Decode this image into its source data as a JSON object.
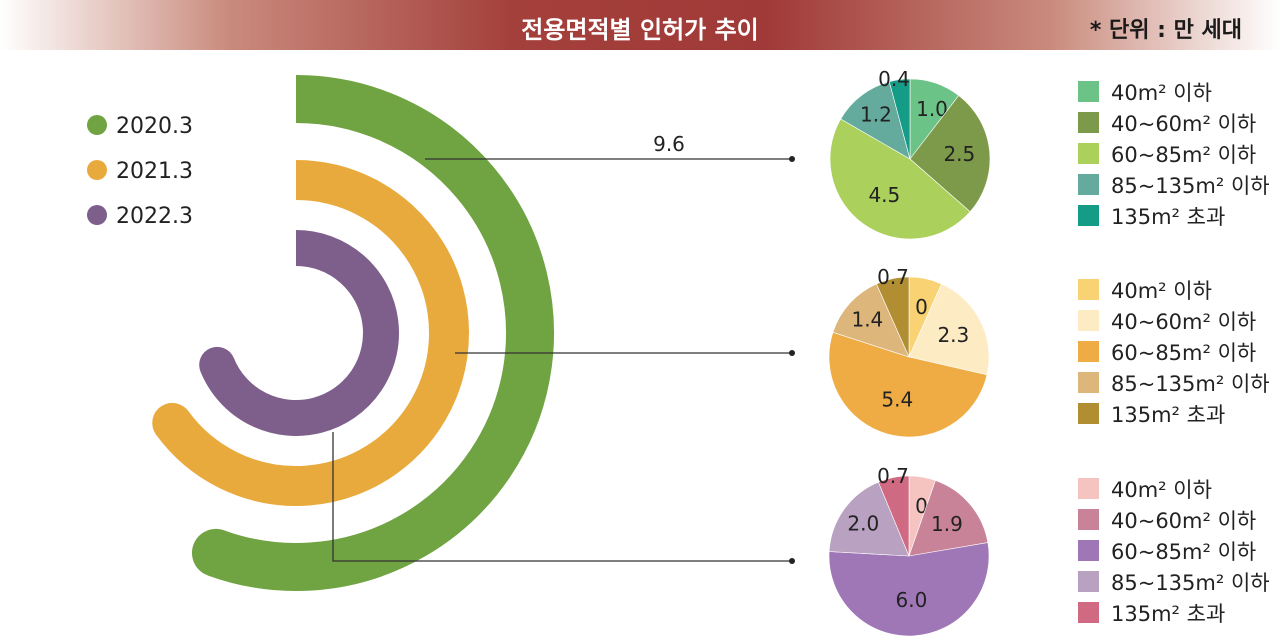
{
  "header": {
    "title": "전용면적별 인허가 추이",
    "unit": "* 단위 : 만 세대"
  },
  "colors": {
    "2020.3": "#70a442",
    "2021.3": "#e9aa3d",
    "2022.3": "#7e5f8b"
  },
  "chart_data": [
    {
      "type": "bar",
      "subtype": "radial",
      "categories": [
        "2020.3",
        "2021.3",
        "2022.3"
      ],
      "values": [
        9.6,
        null,
        null
      ],
      "value_labels": [
        "9.6",
        "",
        ""
      ],
      "legend": {
        "entries": [
          "2020.3",
          "2021.3",
          "2022.3"
        ],
        "position": "top-left"
      }
    },
    {
      "type": "pie",
      "series_for": "2020.3",
      "slices": [
        {
          "label": "1.0",
          "value": 1.0,
          "category": "40m² 이하",
          "color": "#6cc387"
        },
        {
          "label": "2.5",
          "value": 2.5,
          "category": "40~60m² 이하",
          "color": "#7d9a4a"
        },
        {
          "label": "4.5",
          "value": 4.5,
          "category": "60~85m² 이하",
          "color": "#acd05c"
        },
        {
          "label": "1.2",
          "value": 1.2,
          "category": "85~135m² 이하",
          "color": "#64ab9d"
        },
        {
          "label": "0.4",
          "value": 0.4,
          "category": "135m² 초과",
          "color": "#149c87"
        }
      ]
    },
    {
      "type": "pie",
      "series_for": "2021.3",
      "slices": [
        {
          "label": "0.7",
          "value": 0.7,
          "category": "40m² 이하",
          "color": "#f9d273"
        },
        {
          "label": "2.3",
          "value": 2.3,
          "category": "40~60m² 이하",
          "color": "#fdebc4"
        },
        {
          "label": "5.4",
          "value": 5.4,
          "category": "60~85m² 이하",
          "color": "#efac45"
        },
        {
          "label": "1.4",
          "value": 1.4,
          "category": "85~135m² 이하",
          "color": "#dcb67a"
        },
        {
          "label": "0.7",
          "value": 0.7,
          "category": "135m² 초과",
          "color": "#b18e31"
        }
      ]
    },
    {
      "type": "pie",
      "series_for": "2022.3",
      "slices": [
        {
          "label": "0.6",
          "value": 0.6,
          "category": "40m² 이하",
          "color": "#f5c4c1"
        },
        {
          "label": "1.9",
          "value": 1.9,
          "category": "40~60m² 이하",
          "color": "#c98399"
        },
        {
          "label": "6.0",
          "value": 6.0,
          "category": "60~85m² 이하",
          "color": "#9f77b6"
        },
        {
          "label": "2.0",
          "value": 2.0,
          "category": "85~135m² 이하",
          "color": "#b9a1c1"
        },
        {
          "label": "0.7",
          "value": 0.7,
          "category": "135m² 초과",
          "color": "#d06a82"
        }
      ]
    }
  ]
}
